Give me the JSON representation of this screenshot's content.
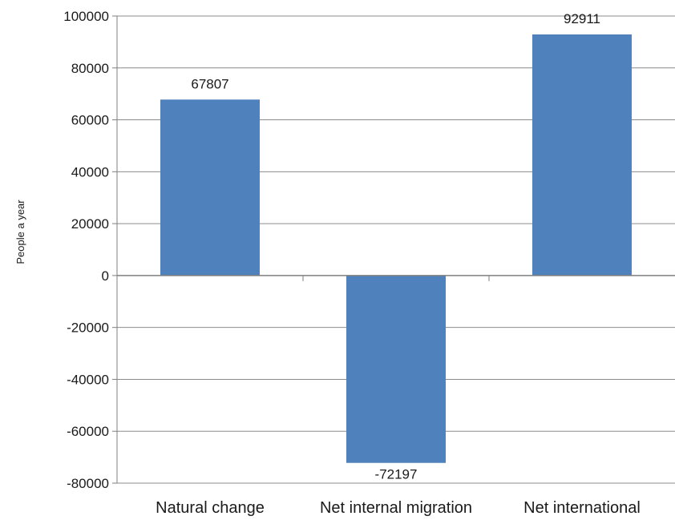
{
  "chart_data": {
    "type": "bar",
    "title": "",
    "xlabel": "",
    "ylabel": "People a year",
    "categories": [
      "Natural change",
      "Net internal migration",
      "Net international"
    ],
    "values": [
      67807,
      -72197,
      92911
    ],
    "data_labels": [
      "67807",
      "-72197",
      "92911"
    ],
    "ylim": [
      -80000,
      100000
    ],
    "yticks": [
      100000,
      80000,
      60000,
      40000,
      20000,
      0,
      -20000,
      -40000,
      -60000,
      -80000
    ],
    "ytick_labels": [
      "100000",
      "80000",
      "60000",
      "40000",
      "20000",
      "0",
      "-20000",
      "-40000",
      "-60000",
      "-80000"
    ],
    "grid": true,
    "legend": "none",
    "bar_color": "#4f81bd",
    "grid_color": "#8c8c8c"
  }
}
